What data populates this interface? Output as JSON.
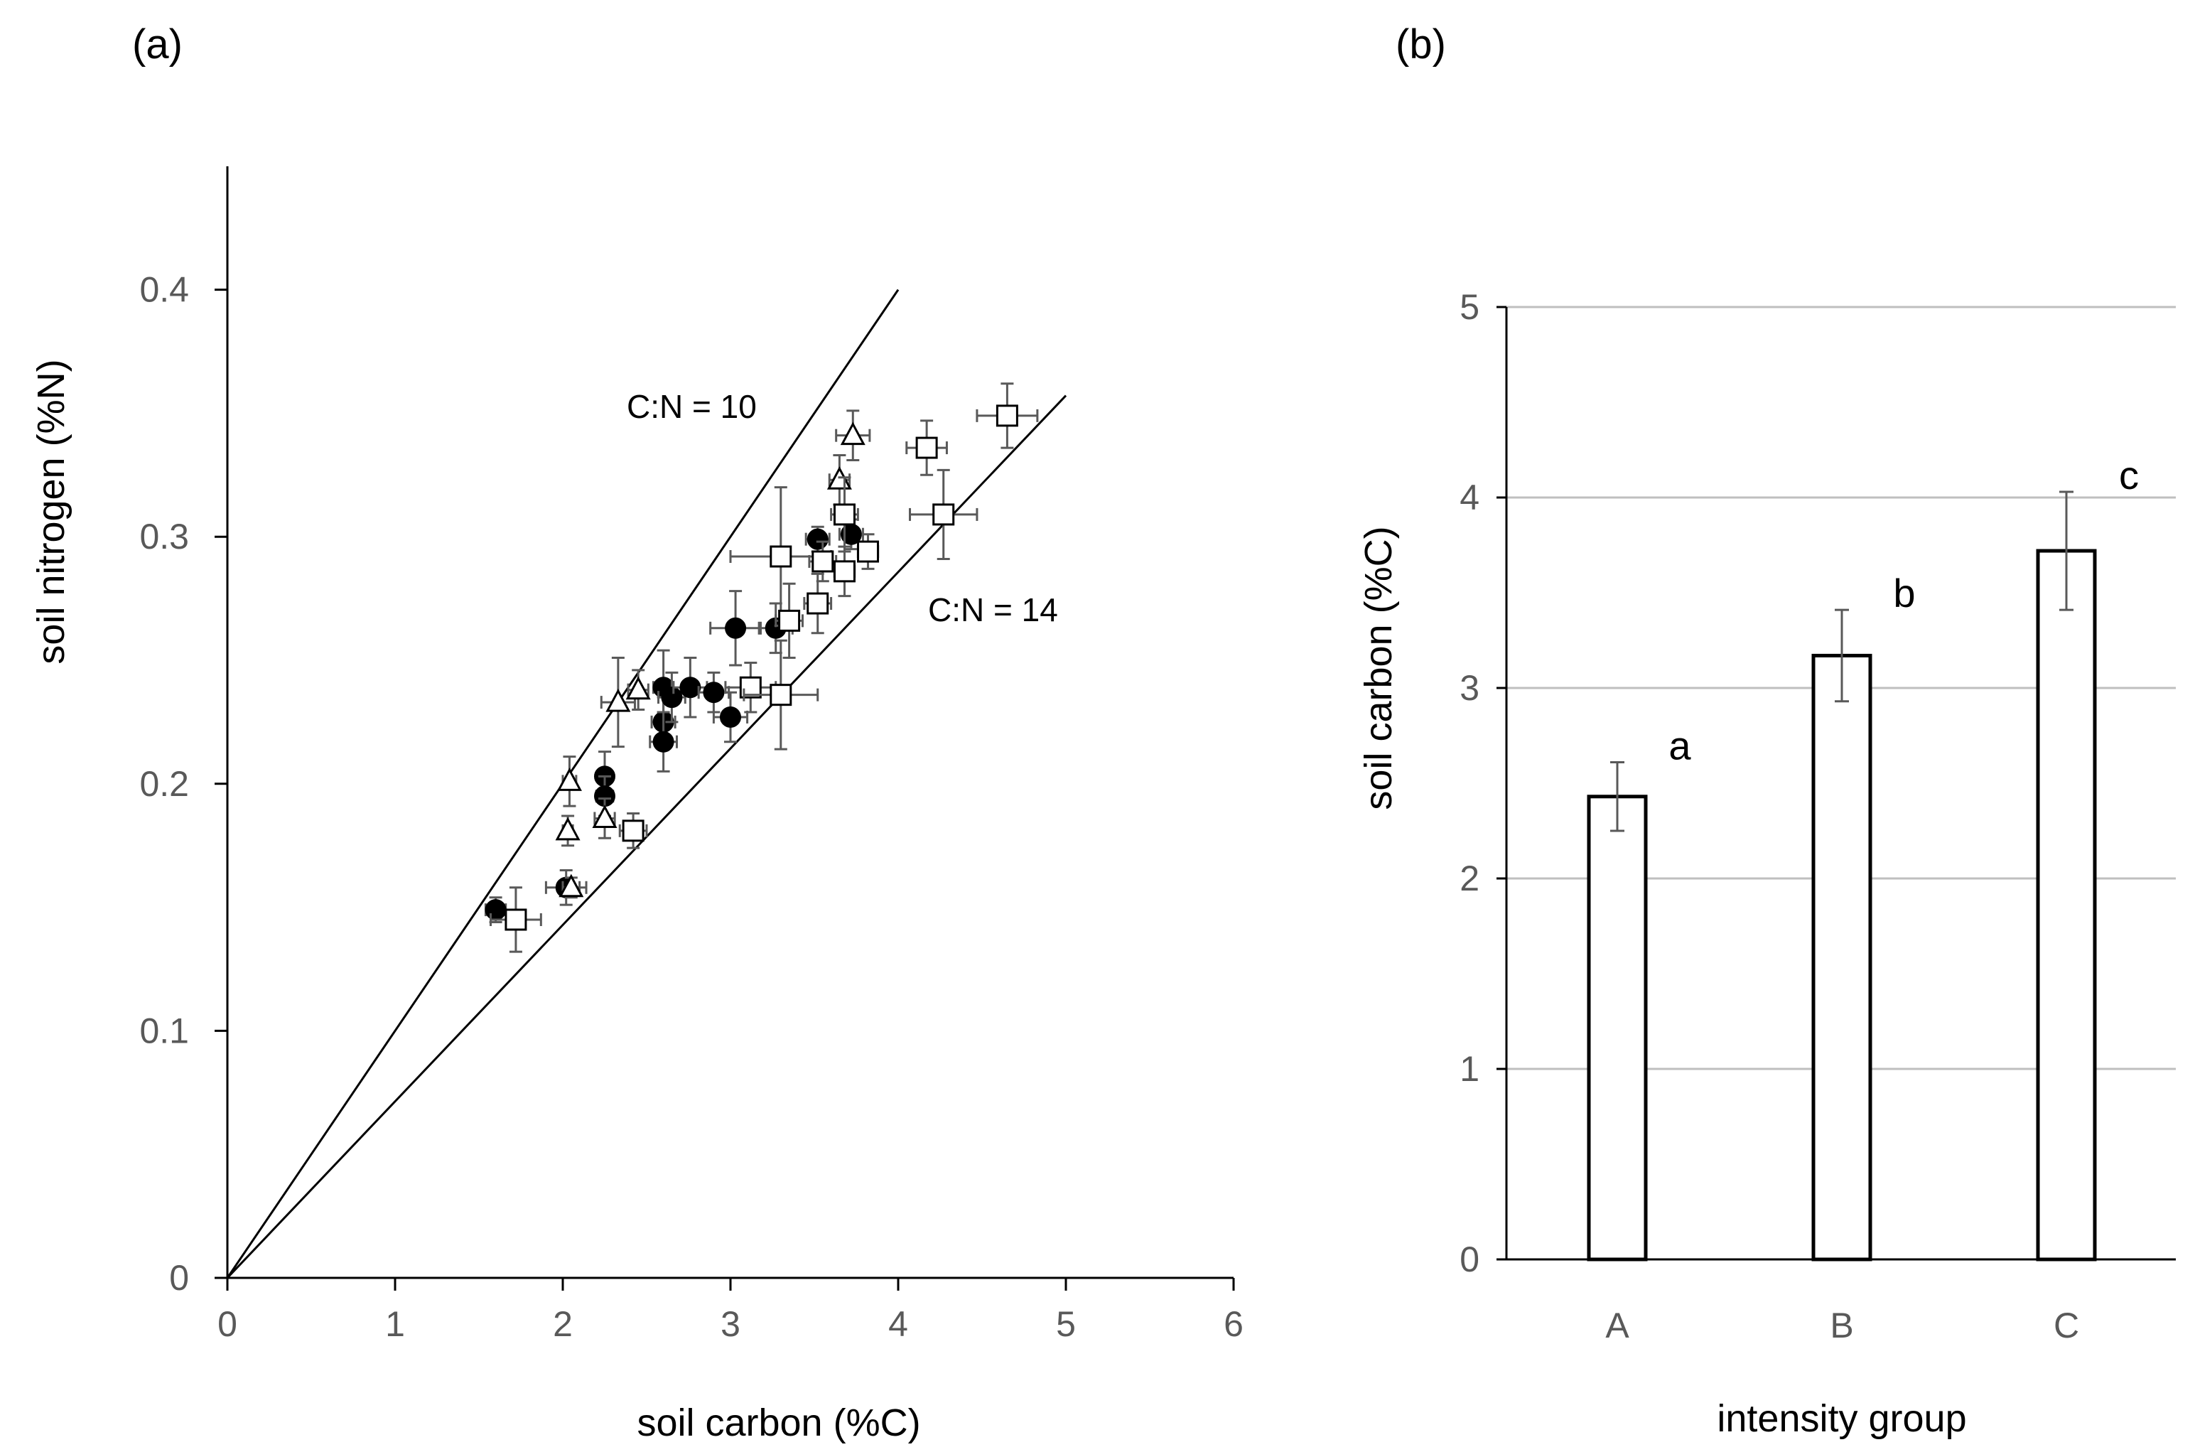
{
  "chart_data": [
    {
      "type": "scatter",
      "panel_label": "(a)",
      "xlabel": "soil carbon (%C)",
      "ylabel": "soil nitrogen (%N)",
      "xlim": [
        0,
        6
      ],
      "ylim": [
        0,
        0.45
      ],
      "x_ticks": [
        0,
        1,
        2,
        3,
        4,
        5,
        6
      ],
      "x_tick_labels": [
        "0",
        "1",
        "2",
        "3",
        "4",
        "5",
        "6"
      ],
      "y_ticks": [
        0,
        0.1,
        0.2,
        0.3,
        0.4
      ],
      "y_tick_labels": [
        "0",
        "0.1",
        "0.2",
        "0.3",
        "0.4"
      ],
      "grid": false,
      "reference_lines": [
        {
          "label": "C:N = 10",
          "ratio": 10,
          "x_end": 4.0
        },
        {
          "label": "C:N = 14",
          "ratio": 14,
          "x_end": 5.0
        }
      ],
      "series": [
        {
          "name": "filled circles",
          "marker": "circle-filled",
          "points": [
            {
              "x": 1.6,
              "y": 0.149,
              "xerr": 0.06,
              "yerr": 0.005
            },
            {
              "x": 2.02,
              "y": 0.158,
              "xerr": 0.12,
              "yerr": 0.007
            },
            {
              "x": 2.25,
              "y": 0.203,
              "xerr": 0.04,
              "yerr": 0.01
            },
            {
              "x": 2.25,
              "y": 0.195,
              "xerr": 0.05,
              "yerr": 0.008
            },
            {
              "x": 2.6,
              "y": 0.239,
              "xerr": 0.06,
              "yerr": 0.015
            },
            {
              "x": 2.6,
              "y": 0.225,
              "xerr": 0.07,
              "yerr": 0.01
            },
            {
              "x": 2.6,
              "y": 0.217,
              "xerr": 0.08,
              "yerr": 0.012
            },
            {
              "x": 2.65,
              "y": 0.235,
              "xerr": 0.08,
              "yerr": 0.01
            },
            {
              "x": 2.76,
              "y": 0.239,
              "xerr": 0.1,
              "yerr": 0.012
            },
            {
              "x": 2.9,
              "y": 0.237,
              "xerr": 0.09,
              "yerr": 0.008
            },
            {
              "x": 3.0,
              "y": 0.227,
              "xerr": 0.1,
              "yerr": 0.01
            },
            {
              "x": 3.03,
              "y": 0.263,
              "xerr": 0.15,
              "yerr": 0.015
            },
            {
              "x": 3.27,
              "y": 0.263,
              "xerr": 0.1,
              "yerr": 0.01
            },
            {
              "x": 3.52,
              "y": 0.299,
              "xerr": 0.07,
              "yerr": 0.005
            },
            {
              "x": 3.72,
              "y": 0.301,
              "xerr": 0.07,
              "yerr": 0.006
            }
          ]
        },
        {
          "name": "open triangles",
          "marker": "triangle-open",
          "points": [
            {
              "x": 2.03,
              "y": 0.181,
              "xerr": 0.03,
              "yerr": 0.006
            },
            {
              "x": 2.04,
              "y": 0.201,
              "xerr": 0.04,
              "yerr": 0.01
            },
            {
              "x": 2.05,
              "y": 0.158,
              "xerr": 0.05,
              "yerr": 0.004
            },
            {
              "x": 2.25,
              "y": 0.186,
              "xerr": 0.06,
              "yerr": 0.008
            },
            {
              "x": 2.33,
              "y": 0.233,
              "xerr": 0.1,
              "yerr": 0.018
            },
            {
              "x": 2.45,
              "y": 0.238,
              "xerr": 0.06,
              "yerr": 0.008
            },
            {
              "x": 3.65,
              "y": 0.323,
              "xerr": 0.06,
              "yerr": 0.01
            },
            {
              "x": 3.73,
              "y": 0.341,
              "xerr": 0.1,
              "yerr": 0.01
            }
          ]
        },
        {
          "name": "open squares",
          "marker": "square-open",
          "points": [
            {
              "x": 1.72,
              "y": 0.145,
              "xerr": 0.15,
              "yerr": 0.013
            },
            {
              "x": 2.42,
              "y": 0.181,
              "xerr": 0.08,
              "yerr": 0.007
            },
            {
              "x": 3.12,
              "y": 0.239,
              "xerr": 0.15,
              "yerr": 0.01
            },
            {
              "x": 3.3,
              "y": 0.292,
              "xerr": 0.3,
              "yerr": 0.028
            },
            {
              "x": 3.3,
              "y": 0.236,
              "xerr": 0.22,
              "yerr": 0.022
            },
            {
              "x": 3.35,
              "y": 0.266,
              "xerr": 0.08,
              "yerr": 0.015
            },
            {
              "x": 3.52,
              "y": 0.273,
              "xerr": 0.08,
              "yerr": 0.012
            },
            {
              "x": 3.55,
              "y": 0.29,
              "xerr": 0.08,
              "yerr": 0.008
            },
            {
              "x": 3.68,
              "y": 0.309,
              "xerr": 0.08,
              "yerr": 0.015
            },
            {
              "x": 3.68,
              "y": 0.286,
              "xerr": 0.06,
              "yerr": 0.01
            },
            {
              "x": 3.82,
              "y": 0.294,
              "xerr": 0.06,
              "yerr": 0.007
            },
            {
              "x": 4.17,
              "y": 0.336,
              "xerr": 0.12,
              "yerr": 0.011
            },
            {
              "x": 4.27,
              "y": 0.309,
              "xerr": 0.2,
              "yerr": 0.018
            },
            {
              "x": 4.65,
              "y": 0.349,
              "xerr": 0.18,
              "yerr": 0.013
            }
          ]
        }
      ]
    },
    {
      "type": "bar",
      "panel_label": "(b)",
      "xlabel": "intensity group",
      "ylabel": "soil carbon (%C)",
      "ylim": [
        0,
        5
      ],
      "y_ticks": [
        0,
        1,
        2,
        3,
        4,
        5
      ],
      "y_tick_labels": [
        "0",
        "1",
        "2",
        "3",
        "4",
        "5"
      ],
      "grid": true,
      "categories": [
        "A",
        "B",
        "C"
      ],
      "values": [
        2.43,
        3.17,
        3.72
      ],
      "errors": [
        0.18,
        0.24,
        0.31
      ],
      "significance_letters": [
        "a",
        "b",
        "c"
      ]
    }
  ]
}
